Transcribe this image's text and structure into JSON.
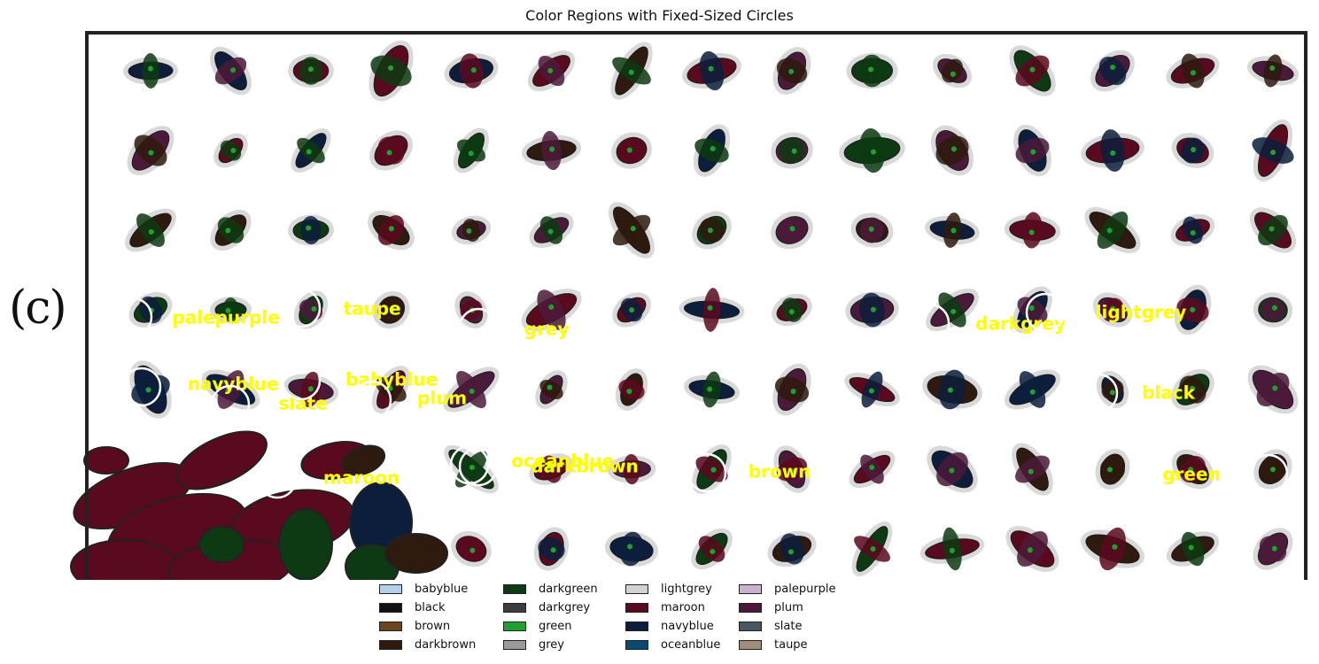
{
  "chart_data": {
    "type": "scatter",
    "title": "Color Regions with Fixed-Sized Circles",
    "panel_label": "(c)",
    "grid": false,
    "legend_placement": "bottom-center",
    "background_colors": {
      "maroon": "#5a0a1e",
      "navyblue": "#0c1e3c",
      "darkgreen": "#0d3a12",
      "green": "#20a030",
      "plum": "#4b1a3a",
      "darkbrown": "#2e1a0e",
      "lightgrey": "#d2d2d2",
      "slate": "#4a5560"
    },
    "annotations": [
      {
        "label": "palepurple",
        "row": 4,
        "col": 1,
        "circle": true
      },
      {
        "label": "taupe",
        "row": 4,
        "col": 3,
        "circle": true
      },
      {
        "label": "grey",
        "row": 4,
        "col": 5,
        "circle": true
      },
      {
        "label": "darkgrey",
        "row": 4,
        "col": 14,
        "circle": true
      },
      {
        "label": "lightgrey",
        "row": 4,
        "col": 16,
        "circle": true
      },
      {
        "label": "navyblue",
        "row": 5,
        "col": 1,
        "circle": true
      },
      {
        "label": "slate",
        "row": 5,
        "col": 2,
        "circle": true
      },
      {
        "label": "babyblue",
        "row": 5,
        "col": 3,
        "circle": true
      },
      {
        "label": "plum",
        "row": 5,
        "col": 4,
        "circle": true
      },
      {
        "label": "black",
        "row": 5,
        "col": 16,
        "circle": true
      },
      {
        "label": "maroon",
        "row": 6,
        "col": 3,
        "circle": true
      },
      {
        "label": "oceanblue",
        "row": 6,
        "col": 6,
        "circle": true
      },
      {
        "label": "darkbrown",
        "row": 6,
        "col": 6,
        "circle": true
      },
      {
        "label": "brown",
        "row": 6,
        "col": 9,
        "circle": true
      },
      {
        "label": "green",
        "row": 6,
        "col": 18,
        "circle": true
      }
    ],
    "legend": [
      {
        "name": "babyblue",
        "color": "#b4d0ec"
      },
      {
        "name": "black",
        "color": "#111111"
      },
      {
        "name": "brown",
        "color": "#6b4520"
      },
      {
        "name": "darkbrown",
        "color": "#2e1a0e"
      },
      {
        "name": "darkgreen",
        "color": "#0d3a12"
      },
      {
        "name": "darkgrey",
        "color": "#3c3c3c"
      },
      {
        "name": "green",
        "color": "#20a030"
      },
      {
        "name": "grey",
        "color": "#9a9a9a"
      },
      {
        "name": "lightgrey",
        "color": "#d2d2d2"
      },
      {
        "name": "maroon",
        "color": "#5a0a1e"
      },
      {
        "name": "navyblue",
        "color": "#0c1e3c"
      },
      {
        "name": "oceanblue",
        "color": "#0a4a70"
      },
      {
        "name": "palepurple",
        "color": "#c8b4d2"
      },
      {
        "name": "plum",
        "color": "#4b1a3a"
      },
      {
        "name": "slate",
        "color": "#4a5560"
      },
      {
        "name": "taupe",
        "color": "#a08c7a"
      }
    ]
  }
}
